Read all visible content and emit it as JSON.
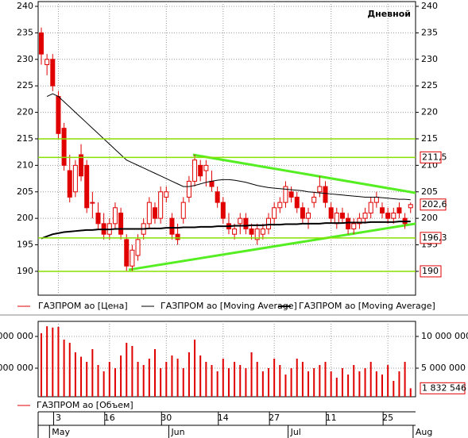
{
  "chart_data": {
    "type": "candlestick",
    "title": "Дневной",
    "categories": [
      null,
      null,
      null,
      "3",
      null,
      null,
      null,
      null,
      null,
      null,
      null,
      null,
      "16",
      null,
      null,
      null,
      null,
      null,
      null,
      null,
      null,
      null,
      "30",
      null,
      null,
      null,
      null,
      null,
      null,
      null,
      null,
      null,
      "14",
      null,
      null,
      null,
      null,
      null,
      null,
      null,
      null,
      "27",
      null,
      null,
      null,
      null,
      null,
      null,
      null,
      null,
      null,
      "11",
      null,
      null,
      null,
      null,
      null,
      null,
      null,
      null,
      null,
      "25",
      null,
      null,
      null,
      null
    ],
    "x_groups": [
      {
        "label": "May",
        "start": 2
      },
      {
        "label": "Jun",
        "start": 23
      },
      {
        "label": "Jul",
        "start": 44
      },
      {
        "label": "Aug",
        "start": 66
      }
    ],
    "ylim": [
      185.5,
      240.9
    ],
    "yticks": [
      190,
      195,
      200,
      205,
      210,
      215,
      220,
      225,
      230,
      235,
      240
    ],
    "grid": true,
    "series": [
      {
        "name": "ГАЗПРОМ ао [Цена]",
        "type": "candlestick",
        "color": "#e00000",
        "last_label": "202,6",
        "values": [
          [
            235,
            236,
            229,
            231
          ],
          [
            229,
            231,
            227,
            230
          ],
          [
            230,
            231,
            224,
            225
          ],
          [
            223,
            224,
            215,
            216
          ],
          [
            217,
            218,
            209,
            210
          ],
          [
            209,
            212,
            203,
            204
          ],
          [
            205,
            211,
            204,
            210
          ],
          [
            212,
            214,
            207,
            208
          ],
          [
            210,
            211,
            201,
            202
          ],
          [
            203,
            205,
            200,
            203
          ],
          [
            201,
            203,
            198,
            199
          ],
          [
            199,
            201,
            196,
            197
          ],
          [
            197,
            200,
            196,
            199
          ],
          [
            199,
            203,
            198,
            202
          ],
          [
            201,
            202,
            196,
            197
          ],
          [
            196,
            197,
            190,
            191
          ],
          [
            191,
            195,
            190,
            194
          ],
          [
            193,
            197,
            192,
            196
          ],
          [
            197,
            200,
            196,
            199
          ],
          [
            199,
            204,
            198,
            203
          ],
          [
            202,
            203,
            199,
            200
          ],
          [
            200,
            206,
            199,
            205
          ],
          [
            204,
            206,
            203,
            205
          ],
          [
            200,
            201,
            196,
            197
          ],
          [
            197,
            199,
            195,
            196
          ],
          [
            200,
            204,
            199,
            203
          ],
          [
            204,
            208,
            203,
            207
          ],
          [
            207,
            212,
            206,
            211
          ],
          [
            210,
            211,
            207,
            208
          ],
          [
            209,
            211,
            206,
            210
          ],
          [
            207,
            209,
            205,
            206
          ],
          [
            205,
            206,
            202,
            203
          ],
          [
            203,
            204,
            199,
            200
          ],
          [
            199,
            201,
            197,
            198
          ],
          [
            197,
            199,
            196,
            198
          ],
          [
            199,
            201,
            197,
            200
          ],
          [
            200,
            201,
            197,
            198
          ],
          [
            198,
            199,
            196,
            197
          ],
          [
            196,
            199,
            195,
            198
          ],
          [
            197,
            199,
            196,
            198
          ],
          [
            198,
            201,
            197,
            200
          ],
          [
            200,
            203,
            199,
            202
          ],
          [
            202,
            204,
            201,
            203
          ],
          [
            203,
            207,
            202,
            206
          ],
          [
            205,
            206,
            203,
            204
          ],
          [
            204,
            205,
            201,
            202
          ],
          [
            202,
            203,
            199,
            200
          ],
          [
            200,
            202,
            198,
            201
          ],
          [
            203,
            205,
            202,
            204
          ],
          [
            205,
            208,
            204,
            206
          ],
          [
            206,
            207,
            202,
            203
          ],
          [
            202,
            203,
            199,
            200
          ],
          [
            199,
            202,
            198,
            201
          ],
          [
            201,
            202,
            199,
            200
          ],
          [
            200,
            201,
            197,
            198
          ],
          [
            198,
            200,
            197,
            199
          ],
          [
            199,
            201,
            198,
            200
          ],
          [
            200,
            202,
            199,
            201
          ],
          [
            201,
            204,
            200,
            203
          ],
          [
            203,
            205,
            202,
            204
          ],
          [
            202,
            203,
            200,
            201
          ],
          [
            201,
            202,
            199,
            200
          ],
          [
            200,
            202,
            199,
            201
          ],
          [
            202,
            203,
            200,
            201
          ],
          [
            200,
            201,
            198,
            199
          ],
          [
            202,
            203,
            201,
            202.6
          ]
        ]
      },
      {
        "name": "ГАЗПРОМ ао [Moving Average]",
        "type": "line",
        "color": "#000000",
        "line_width": 1,
        "values": [
          null,
          223,
          223.5,
          223,
          222,
          221,
          220,
          219,
          218,
          217,
          216,
          215,
          214,
          213,
          212,
          211,
          210.5,
          210,
          209.5,
          209,
          208.5,
          208,
          207.5,
          207,
          206.5,
          206,
          206,
          206.2,
          206.5,
          206.8,
          207,
          207.2,
          207.3,
          207.3,
          207.2,
          207,
          206.8,
          206.5,
          206.2,
          206,
          205.8,
          205.7,
          205.6,
          205.5,
          205.4,
          205.3,
          205.2,
          205,
          204.9,
          204.8,
          204.7,
          204.6,
          204.5,
          204.4,
          204.3,
          204.2,
          204.1,
          204,
          204,
          204,
          203.9,
          203.8,
          203.7,
          203.6,
          203.6,
          203.5
        ]
      },
      {
        "name": "ГАЗПРОМ ао [Moving Average]",
        "type": "line",
        "color": "#000000",
        "line_width": 2,
        "values": [
          196.2,
          196.6,
          197,
          197.2,
          197.4,
          197.5,
          197.6,
          197.7,
          197.8,
          197.8,
          197.9,
          197.9,
          197.9,
          198,
          198,
          198,
          198,
          198,
          198,
          198.1,
          198.1,
          198.1,
          198.2,
          198.2,
          198.2,
          198.3,
          198.3,
          198.3,
          198.4,
          198.4,
          198.4,
          198.5,
          198.5,
          198.5,
          198.6,
          198.6,
          198.6,
          198.7,
          198.7,
          198.7,
          198.8,
          198.8,
          198.8,
          198.9,
          198.9,
          198.9,
          199,
          199,
          199,
          199,
          199.1,
          199.1,
          199.1,
          199.1,
          199.2,
          199.2,
          199.2,
          199.2,
          199.3,
          199.3,
          199.3,
          199.3,
          199.3,
          199.4,
          199.4,
          199.4
        ]
      }
    ],
    "level_color": "#88e000",
    "levels": [
      {
        "value": 215
      },
      {
        "value": 211.5,
        "label": "211,5"
      },
      {
        "value": 196.3,
        "label": "196,3"
      },
      {
        "value": 190,
        "label": "190"
      }
    ],
    "trend_color": "#55ee22",
    "trendlines": [
      {
        "x": [
          26.7,
          65.9
        ],
        "y": [
          212,
          204.8
        ]
      },
      {
        "x": [
          15.4,
          65.9
        ],
        "y": [
          190.3,
          199
        ]
      }
    ],
    "volume": {
      "name": "ГАЗПРОМ ао [Объем]",
      "color": "#e00000",
      "last_label": "1 832 546",
      "ylim": [
        500000,
        12375000
      ],
      "yticks": [
        {
          "value": 10000000,
          "label": "10 000 000"
        },
        {
          "value": 5000000,
          "label": "5 000 000"
        }
      ],
      "values": [
        10500000,
        11600000,
        11400000,
        11500000,
        9500000,
        9000000,
        7500000,
        6800000,
        6000000,
        8000000,
        5500000,
        4500000,
        6000000,
        5000000,
        7000000,
        9000000,
        8500000,
        6000000,
        5500000,
        6500000,
        8000000,
        5000000,
        6000000,
        7000000,
        6500000,
        5000000,
        7500000,
        9500000,
        7000000,
        6000000,
        5500000,
        4500000,
        6500000,
        5000000,
        6000000,
        5500000,
        5000000,
        7500000,
        6000000,
        4500000,
        5000000,
        6500000,
        5500000,
        4000000,
        5000000,
        6500000,
        6000000,
        4500000,
        5000000,
        5500000,
        6000000,
        4500000,
        3500000,
        5000000,
        4000000,
        5500000,
        4500000,
        5000000,
        6000000,
        4500000,
        4000000,
        5500000,
        3000000,
        4500000,
        6000000,
        1832546
      ]
    }
  }
}
